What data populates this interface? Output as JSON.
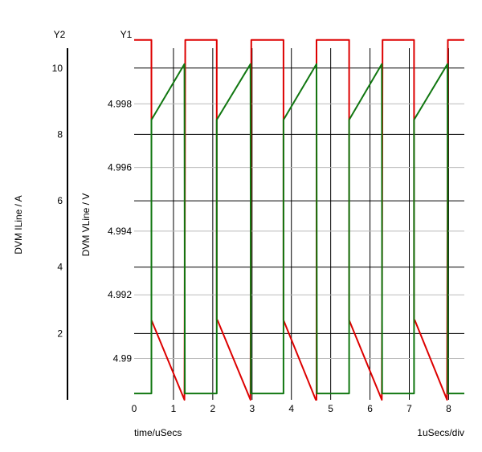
{
  "chart_data": {
    "type": "line",
    "x_axis": {
      "label": "time/uSecs",
      "scale_note": "1uSecs/div",
      "range": [
        0,
        8.4
      ],
      "ticks": [
        0,
        1,
        2,
        3,
        4,
        5,
        6,
        7,
        8
      ]
    },
    "y1_axis": {
      "title": "Y1",
      "label": "DVM VLine / V",
      "range": [
        4.9887,
        4.99975
      ],
      "ticks": [
        4.99,
        4.992,
        4.994,
        4.996,
        4.998
      ],
      "tick_labels": [
        "4.99",
        "4.992",
        "4.994",
        "4.996",
        "4.998"
      ]
    },
    "y2_axis": {
      "title": "Y2",
      "label": "DVM ILine / A",
      "range": [
        0,
        10.6
      ],
      "ticks": [
        2,
        4,
        6,
        8,
        10
      ]
    },
    "grid": true,
    "series": [
      {
        "axis": "y2",
        "color": "#dd0000",
        "x": [
          0,
          0.44,
          0.44,
          1.28,
          1.3,
          2.1,
          2.1,
          2.12,
          2.96,
          2.98,
          3.8,
          3.8,
          4.62,
          4.64,
          4.64,
          5.47,
          5.47,
          6.3,
          6.32,
          7.12,
          7.12,
          7.14,
          7.96,
          7.98,
          8.4
        ],
        "values": [
          10.85,
          10.85,
          2.4,
          0,
          10.85,
          10.85,
          2.4,
          2.4,
          0,
          10.85,
          10.85,
          2.4,
          0,
          0,
          10.85,
          10.85,
          2.4,
          0,
          10.85,
          10.85,
          2.4,
          2.4,
          0,
          10.85,
          10.85
        ]
      },
      {
        "axis": "y1",
        "color": "#117711",
        "x": [
          0,
          0.44,
          0.44,
          1.28,
          1.29,
          2.1,
          2.1,
          2.96,
          2.97,
          3.8,
          3.8,
          4.64,
          4.65,
          5.47,
          5.47,
          6.3,
          6.31,
          7.12,
          7.12,
          7.97,
          7.98,
          8.4
        ],
        "values": [
          4.9889,
          4.9889,
          4.9975,
          4.99925,
          4.9889,
          4.9889,
          4.9975,
          4.99925,
          4.9889,
          4.9889,
          4.9975,
          4.99925,
          4.9889,
          4.9889,
          4.9975,
          4.99925,
          4.9889,
          4.9889,
          4.9975,
          4.99925,
          4.9889,
          4.9889
        ]
      }
    ]
  }
}
